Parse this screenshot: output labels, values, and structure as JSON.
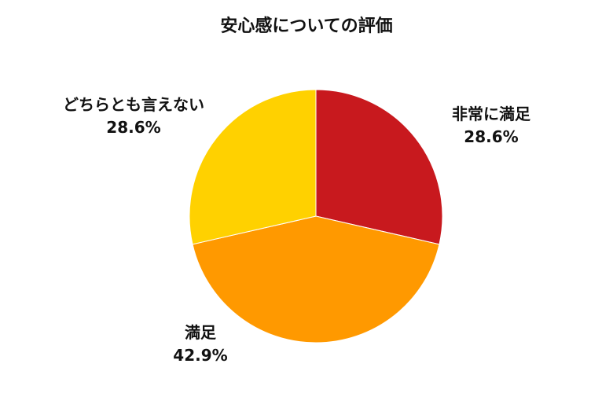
{
  "chart_data": {
    "type": "pie",
    "title": "安心感についての評価",
    "slices": [
      {
        "label": "非常に満足",
        "percent_label": "28.6%",
        "value": 28.6,
        "color": "#C8191E"
      },
      {
        "label": "満足",
        "percent_label": "42.9%",
        "value": 42.9,
        "color": "#FF9900"
      },
      {
        "label": "どちらとも言えない",
        "percent_label": "28.6%",
        "value": 28.6,
        "color": "#FFD100"
      }
    ],
    "start_angle": "12 o'clock",
    "direction": "clockwise",
    "legend": "none"
  }
}
